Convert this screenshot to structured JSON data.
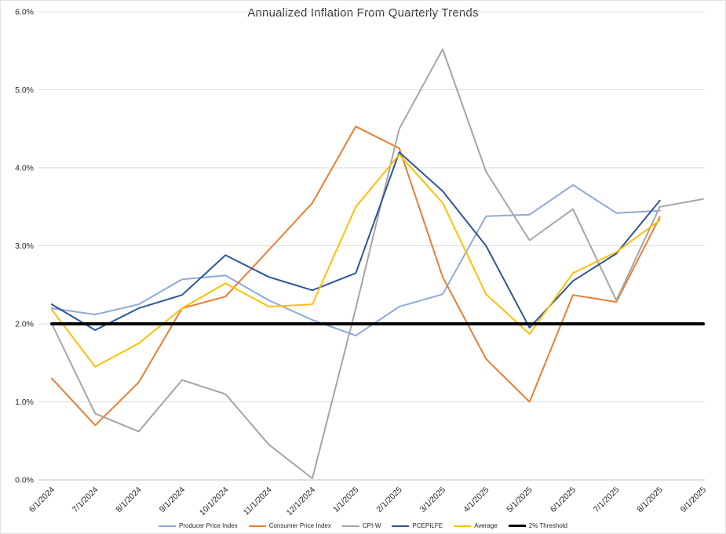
{
  "chart_data": {
    "type": "line",
    "title": "Annualized Inflation From Quarterly Trends",
    "xlabel": "",
    "ylabel": "",
    "ylim": [
      0,
      6
    ],
    "grid": "horizontal",
    "legend_position": "bottom",
    "y_tick_labels": [
      "0.0%",
      "1.0%",
      "2.0%",
      "3.0%",
      "4.0%",
      "5.0%",
      "6.0%"
    ],
    "categories": [
      "6/1/2024",
      "7/1/2024",
      "8/1/2024",
      "9/1/2024",
      "10/1/2024",
      "11/1/2024",
      "12/1/2024",
      "1/1/2025",
      "2/1/2025",
      "3/1/2025",
      "4/1/2025",
      "5/1/2025",
      "6/1/2025",
      "7/1/2025",
      "8/1/2025",
      "9/1/2025"
    ],
    "value_unit": "percent",
    "series": [
      {
        "name": "Producer Price Index",
        "color": "#8EA9DB",
        "stroke_width": 2,
        "values": [
          2.2,
          2.12,
          2.25,
          2.57,
          2.62,
          2.3,
          2.05,
          1.85,
          2.22,
          2.38,
          3.38,
          3.4,
          3.78,
          3.42,
          3.45,
          null
        ]
      },
      {
        "name": "Consumer Price Index",
        "color": "#ED7D31",
        "stroke_width": 2,
        "values": [
          1.3,
          0.7,
          1.25,
          2.2,
          2.35,
          2.95,
          3.55,
          4.53,
          4.25,
          2.6,
          1.55,
          1.0,
          2.37,
          2.28,
          3.37,
          null
        ]
      },
      {
        "name": "CPI-W",
        "color": "#A5A5A5",
        "stroke_width": 2,
        "values": [
          2.0,
          0.85,
          0.62,
          1.28,
          1.1,
          0.45,
          0.02,
          2.2,
          4.5,
          5.52,
          3.95,
          3.07,
          3.47,
          2.3,
          3.5,
          3.6
        ]
      },
      {
        "name": "PCEPILFE",
        "color": "#2F5597",
        "stroke_width": 2,
        "values": [
          2.25,
          1.92,
          2.2,
          2.37,
          2.88,
          2.6,
          2.43,
          2.65,
          4.2,
          3.7,
          3.0,
          1.95,
          2.55,
          2.9,
          3.58,
          null
        ]
      },
      {
        "name": "Average",
        "color": "#FFC000",
        "stroke_width": 2,
        "values": [
          2.18,
          1.45,
          1.75,
          2.2,
          2.52,
          2.22,
          2.25,
          3.5,
          4.17,
          3.55,
          2.38,
          1.87,
          2.65,
          2.92,
          3.33,
          null
        ]
      },
      {
        "name": "2% Threshold",
        "color": "#000000",
        "stroke_width": 4,
        "values": [
          2.0,
          2.0,
          2.0,
          2.0,
          2.0,
          2.0,
          2.0,
          2.0,
          2.0,
          2.0,
          2.0,
          2.0,
          2.0,
          2.0,
          2.0,
          2.0
        ]
      }
    ]
  }
}
